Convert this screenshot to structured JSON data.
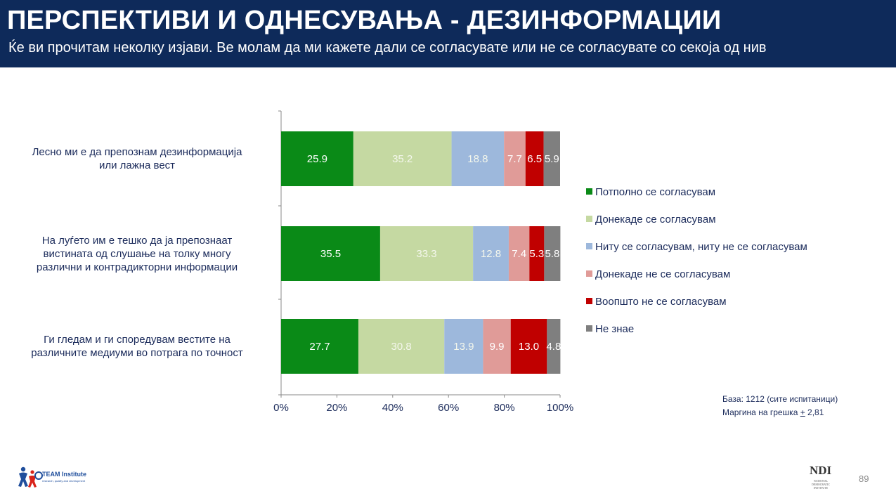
{
  "header": {
    "title": "ПЕРСПЕКТИВИ И ОДНЕСУВАЊА - ДЕЗИНФОРМАЦИИ",
    "subtitle": "Ќе ви прочитам неколку изјави. Ве молам да ми кажете дали се согласувате или не се согласувате со секоја од нив"
  },
  "chart_data": {
    "type": "bar",
    "orientation": "horizontal-stacked-100",
    "categories": [
      "Лесно ми е да препознам дезинформација или лажна вест",
      "На луѓето им е тешко да ја препознаат вистината од слушање на толку многу различни и контрадикторни информации",
      "Ги гледам и ги споредувам вестите на различните медиуми во потрага по точност"
    ],
    "series": [
      {
        "name": "Потполно се согласувам",
        "color": "#0a8a17",
        "values": [
          25.9,
          35.5,
          27.7
        ]
      },
      {
        "name": "Донекаде се согласувам",
        "color": "#c5d9a2",
        "values": [
          35.2,
          33.3,
          30.8
        ]
      },
      {
        "name": "Ниту се согласувам, ниту не се согласувам",
        "color": "#9db8dc",
        "values": [
          18.8,
          12.8,
          13.9
        ]
      },
      {
        "name": "Донекаде не се согласувам",
        "color": "#e09b98",
        "values": [
          7.7,
          7.4,
          9.9
        ]
      },
      {
        "name": "Воопшто не се согласувам",
        "color": "#c00000",
        "values": [
          6.5,
          5.3,
          13.0
        ]
      },
      {
        "name": "Не знае",
        "color": "#7f7f7f",
        "values": [
          5.9,
          5.8,
          4.8
        ]
      }
    ],
    "xticks": [
      "0%",
      "20%",
      "40%",
      "60%",
      "80%",
      "100%"
    ],
    "xlim": [
      0,
      100
    ],
    "legend": "right",
    "grid": false
  },
  "notes": {
    "base": "База: 1212 (сите испитаници)",
    "margin_prefix": "Маргина на грешка ",
    "margin_symbol": "+",
    "margin_value": " 2,81"
  },
  "page_number": "89",
  "logos": {
    "team": "TEAM Institute",
    "team_tagline": "research, quality and development",
    "ndi": "NDI",
    "ndi_tagline": "NATIONAL DEMOCRATIC INSTITUTE"
  }
}
